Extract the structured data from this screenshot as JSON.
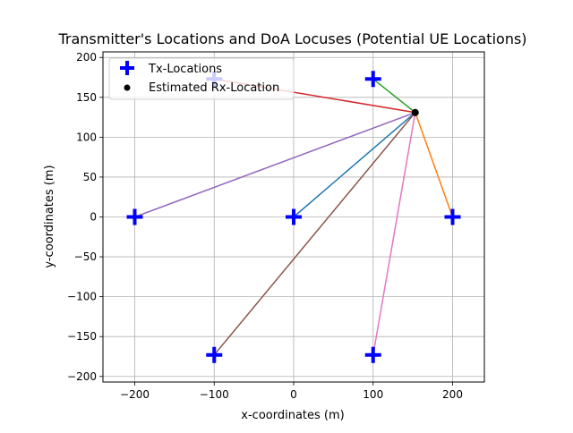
{
  "chart_data": {
    "type": "scatter",
    "title": "Transmitter's Locations and DoA Locuses (Potential UE Locations)",
    "xlabel": "x-coordinates (m)",
    "ylabel": "y-coordinates (m)",
    "xlim": [
      -240,
      240
    ],
    "ylim": [
      -207,
      207
    ],
    "xticks": [
      -200,
      -100,
      0,
      100,
      200
    ],
    "xtick_labels": [
      "−200",
      "−100",
      "0",
      "100",
      "200"
    ],
    "yticks": [
      -200,
      -150,
      -100,
      -50,
      0,
      50,
      100,
      150,
      200
    ],
    "ytick_labels": [
      "−200",
      "−150",
      "−100",
      "−50",
      "0",
      "50",
      "100",
      "150",
      "200"
    ],
    "grid": true,
    "legend": {
      "placement": "top-left",
      "entries": [
        "Tx-Locations",
        "Estimated Rx-Location"
      ]
    },
    "tx_locations": {
      "name": "Tx-Locations",
      "marker": "plus",
      "color": "#0000ff",
      "x": [
        0,
        200,
        100,
        -100,
        -200,
        -100,
        100
      ],
      "y": [
        0,
        0,
        173,
        173,
        0,
        -173,
        -173
      ]
    },
    "rx_location": {
      "name": "Estimated Rx-Location",
      "marker": "circle",
      "color": "#000000",
      "x": 153,
      "y": 131
    },
    "doa_lines": [
      {
        "from": [
          0,
          0
        ],
        "color": "#1f77b4"
      },
      {
        "from": [
          200,
          0
        ],
        "color": "#ff7f0e"
      },
      {
        "from": [
          100,
          173
        ],
        "color": "#2ca02c"
      },
      {
        "from": [
          -100,
          173
        ],
        "color": "#d62728"
      },
      {
        "from": [
          -200,
          0
        ],
        "color": "#9467bd"
      },
      {
        "from": [
          -100,
          -173
        ],
        "color": "#8c564b"
      },
      {
        "from": [
          100,
          -173
        ],
        "color": "#e377c2"
      }
    ]
  }
}
